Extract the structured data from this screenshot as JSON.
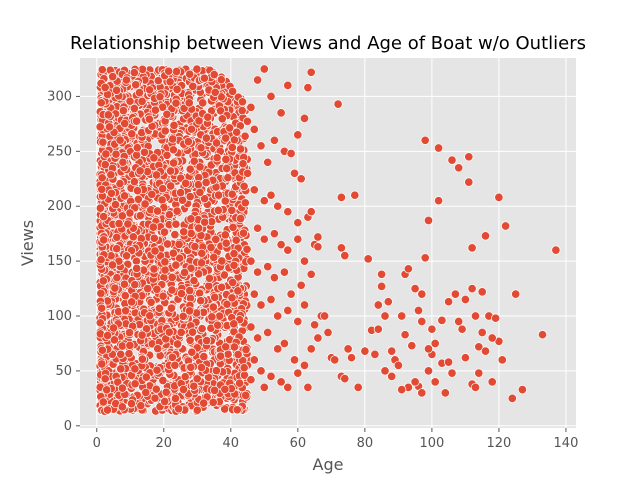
{
  "chart_data": {
    "type": "scatter",
    "title": "Relationship between Views and Age of Boat w/o Outliers",
    "xlabel": "Age",
    "ylabel": "Views",
    "xlim": [
      -5,
      143
    ],
    "ylim": [
      -2,
      335
    ],
    "xticks": [
      0,
      20,
      40,
      60,
      80,
      100,
      120,
      140
    ],
    "yticks": [
      0,
      50,
      100,
      150,
      200,
      250,
      300
    ],
    "grid": true,
    "point_color": "#E24A33",
    "point_edge_color": "#FFFFFF",
    "background_color": "#E5E5E5",
    "dense_region": {
      "x_range": [
        1,
        45
      ],
      "y_range": [
        13,
        325
      ]
    },
    "points": [
      [
        48,
        315
      ],
      [
        50,
        325
      ],
      [
        52,
        300
      ],
      [
        55,
        285
      ],
      [
        57,
        310
      ],
      [
        60,
        265
      ],
      [
        62,
        280
      ],
      [
        63,
        308
      ],
      [
        64,
        322
      ],
      [
        46,
        290
      ],
      [
        47,
        270
      ],
      [
        49,
        255
      ],
      [
        51,
        240
      ],
      [
        53,
        260
      ],
      [
        56,
        250
      ],
      [
        58,
        248
      ],
      [
        59,
        230
      ],
      [
        61,
        225
      ],
      [
        45,
        230
      ],
      [
        47,
        215
      ],
      [
        50,
        205
      ],
      [
        52,
        210
      ],
      [
        54,
        200
      ],
      [
        57,
        195
      ],
      [
        60,
        185
      ],
      [
        63,
        190
      ],
      [
        64,
        195
      ],
      [
        48,
        180
      ],
      [
        50,
        170
      ],
      [
        53,
        175
      ],
      [
        55,
        165
      ],
      [
        57,
        160
      ],
      [
        60,
        170
      ],
      [
        62,
        150
      ],
      [
        65,
        165
      ],
      [
        66,
        172
      ],
      [
        46,
        150
      ],
      [
        48,
        140
      ],
      [
        51,
        145
      ],
      [
        53,
        135
      ],
      [
        56,
        140
      ],
      [
        58,
        120
      ],
      [
        61,
        128
      ],
      [
        64,
        138
      ],
      [
        66,
        163
      ],
      [
        47,
        120
      ],
      [
        49,
        110
      ],
      [
        52,
        115
      ],
      [
        54,
        100
      ],
      [
        57,
        105
      ],
      [
        60,
        95
      ],
      [
        62,
        110
      ],
      [
        65,
        92
      ],
      [
        67,
        100
      ],
      [
        46,
        90
      ],
      [
        48,
        80
      ],
      [
        51,
        85
      ],
      [
        54,
        70
      ],
      [
        56,
        75
      ],
      [
        59,
        60
      ],
      [
        62,
        55
      ],
      [
        64,
        70
      ],
      [
        66,
        80
      ],
      [
        47,
        60
      ],
      [
        49,
        50
      ],
      [
        52,
        45
      ],
      [
        55,
        40
      ],
      [
        57,
        35
      ],
      [
        60,
        48
      ],
      [
        63,
        35
      ],
      [
        46,
        42
      ],
      [
        50,
        35
      ],
      [
        68,
        100
      ],
      [
        69,
        85
      ],
      [
        70,
        62
      ],
      [
        71,
        60
      ],
      [
        72,
        293
      ],
      [
        73,
        208
      ],
      [
        73,
        162
      ],
      [
        74,
        155
      ],
      [
        75,
        70
      ],
      [
        73,
        45
      ],
      [
        74,
        43
      ],
      [
        76,
        62
      ],
      [
        77,
        210
      ],
      [
        78,
        35
      ],
      [
        80,
        68
      ],
      [
        81,
        152
      ],
      [
        82,
        87
      ],
      [
        83,
        65
      ],
      [
        84,
        88
      ],
      [
        84,
        110
      ],
      [
        85,
        127
      ],
      [
        85,
        138
      ],
      [
        86,
        100
      ],
      [
        86,
        50
      ],
      [
        87,
        113
      ],
      [
        88,
        68
      ],
      [
        89,
        60
      ],
      [
        90,
        55
      ],
      [
        91,
        100
      ],
      [
        92,
        83
      ],
      [
        92,
        138
      ],
      [
        93,
        143
      ],
      [
        93,
        35
      ],
      [
        94,
        73
      ],
      [
        95,
        125
      ],
      [
        96,
        36
      ],
      [
        96,
        105
      ],
      [
        97,
        120
      ],
      [
        97,
        95
      ],
      [
        98,
        260
      ],
      [
        98,
        153
      ],
      [
        99,
        187
      ],
      [
        99,
        50
      ],
      [
        100,
        88
      ],
      [
        100,
        65
      ],
      [
        101,
        75
      ],
      [
        101,
        40
      ],
      [
        102,
        253
      ],
      [
        102,
        205
      ],
      [
        103,
        96
      ],
      [
        104,
        30
      ],
      [
        105,
        113
      ],
      [
        106,
        242
      ],
      [
        107,
        120
      ],
      [
        108,
        95
      ],
      [
        108,
        235
      ],
      [
        109,
        88
      ],
      [
        110,
        115
      ],
      [
        111,
        245
      ],
      [
        111,
        222
      ],
      [
        112,
        125
      ],
      [
        112,
        38
      ],
      [
        112,
        162
      ],
      [
        113,
        100
      ],
      [
        114,
        72
      ],
      [
        114,
        48
      ],
      [
        115,
        85
      ],
      [
        115,
        122
      ],
      [
        116,
        173
      ],
      [
        116,
        68
      ],
      [
        117,
        100
      ],
      [
        118,
        40
      ],
      [
        119,
        98
      ],
      [
        120,
        208
      ],
      [
        120,
        77
      ],
      [
        121,
        60
      ],
      [
        122,
        182
      ],
      [
        124,
        25
      ],
      [
        125,
        120
      ],
      [
        127,
        33
      ],
      [
        133,
        83
      ],
      [
        137,
        160
      ],
      [
        103,
        57
      ],
      [
        106,
        48
      ],
      [
        110,
        62
      ],
      [
        113,
        35
      ],
      [
        118,
        80
      ],
      [
        88,
        45
      ],
      [
        91,
        33
      ],
      [
        95,
        40
      ],
      [
        97,
        30
      ],
      [
        99,
        70
      ],
      [
        105,
        58
      ]
    ]
  }
}
